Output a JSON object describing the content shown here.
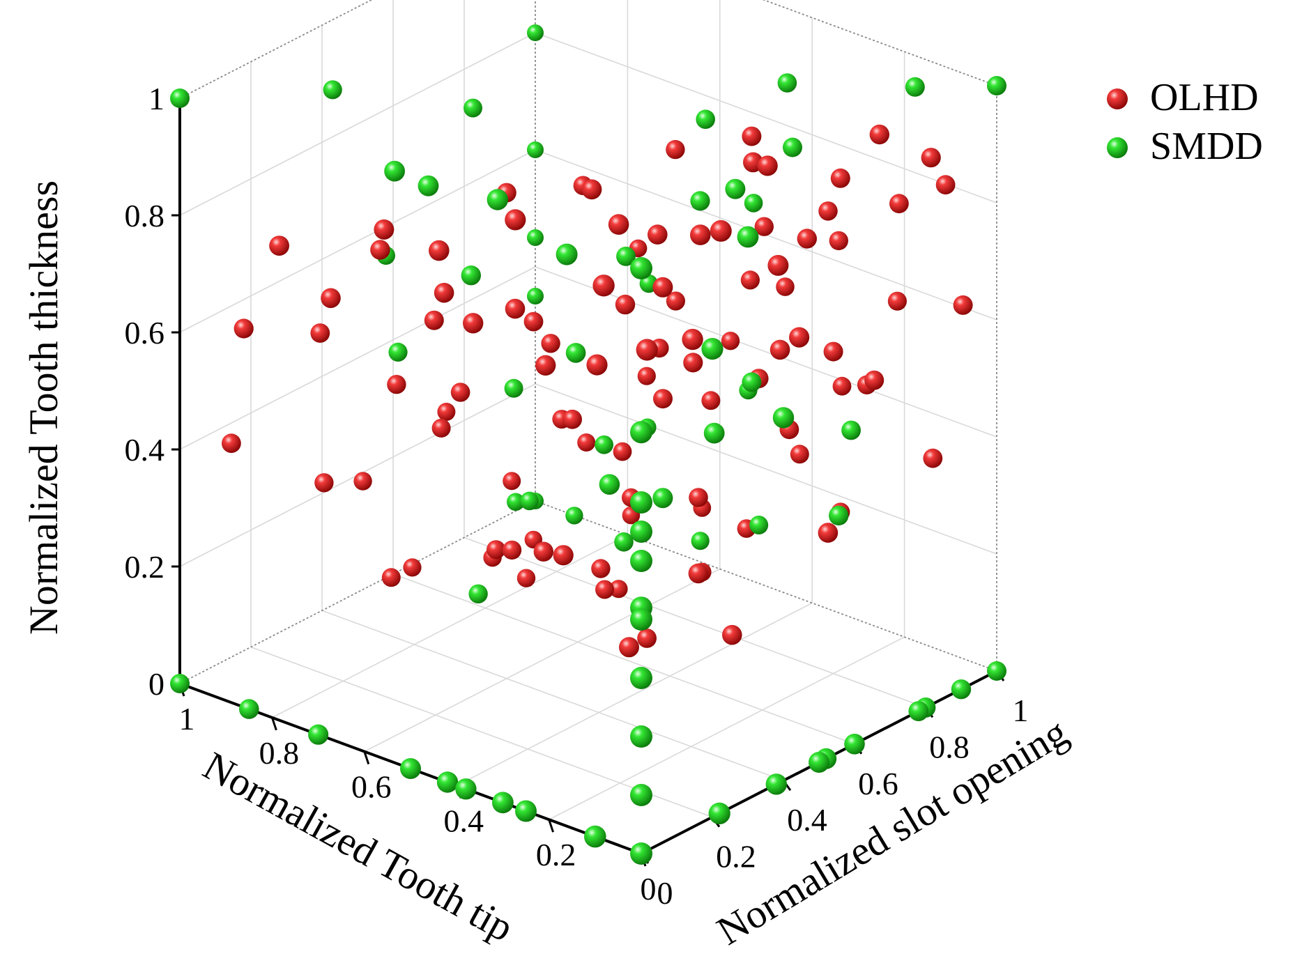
{
  "chart_data": {
    "type": "scatter3d",
    "xlabel": "Normalized Tooth tip",
    "ylabel": "Normalized slot opening",
    "zlabel": "Normalized Tooth thickness",
    "xlim": [
      0,
      1
    ],
    "ylim": [
      0,
      1
    ],
    "zlim": [
      0,
      1
    ],
    "x_ticks": [
      "0",
      "0.2",
      "0.4",
      "0.6",
      "0.8",
      "1"
    ],
    "y_ticks": [
      "0",
      "0.2",
      "0.4",
      "0.6",
      "0.8",
      "1"
    ],
    "z_ticks": [
      "0",
      "0.2",
      "0.4",
      "0.6",
      "0.8",
      "1"
    ],
    "grid": true,
    "legend_position": "top-right",
    "series": [
      {
        "name": "OLHD",
        "color": "#d8141a",
        "points": [
          [
            0.12,
            0.05,
            0.92
          ],
          [
            0.35,
            0.1,
            0.95
          ],
          [
            0.5,
            0.08,
            0.86
          ],
          [
            0.28,
            0.3,
            0.9
          ],
          [
            0.8,
            0.02,
            0.8
          ],
          [
            0.65,
            0.12,
            0.84
          ],
          [
            0.72,
            0.2,
            0.76
          ],
          [
            0.4,
            0.38,
            0.9
          ],
          [
            0.15,
            0.55,
            0.96
          ],
          [
            0.22,
            0.6,
            0.93
          ],
          [
            0.3,
            0.7,
            0.92
          ],
          [
            0.45,
            0.68,
            0.86
          ],
          [
            0.1,
            0.8,
            0.95
          ],
          [
            0.2,
            0.82,
            0.84
          ],
          [
            0.55,
            0.55,
            0.81
          ],
          [
            0.6,
            0.4,
            0.83
          ],
          [
            0.9,
            0.05,
            0.62
          ],
          [
            0.85,
            0.2,
            0.58
          ],
          [
            0.68,
            0.3,
            0.62
          ],
          [
            0.52,
            0.32,
            0.68
          ],
          [
            0.4,
            0.25,
            0.64
          ],
          [
            0.58,
            0.45,
            0.6
          ],
          [
            0.3,
            0.45,
            0.74
          ],
          [
            0.18,
            0.7,
            0.78
          ],
          [
            0.25,
            0.85,
            0.76
          ],
          [
            0.05,
            0.88,
            0.9
          ],
          [
            0.35,
            0.8,
            0.72
          ],
          [
            0.12,
            0.6,
            0.66
          ],
          [
            0.95,
            0.08,
            0.4
          ],
          [
            0.8,
            0.35,
            0.46
          ],
          [
            0.7,
            0.4,
            0.46
          ],
          [
            0.62,
            0.55,
            0.52
          ],
          [
            0.42,
            0.5,
            0.66
          ],
          [
            0.35,
            0.6,
            0.55
          ],
          [
            0.5,
            0.7,
            0.5
          ],
          [
            0.2,
            0.65,
            0.6
          ],
          [
            0.88,
            0.25,
            0.3
          ],
          [
            0.78,
            0.45,
            0.36
          ],
          [
            0.55,
            0.52,
            0.42
          ],
          [
            0.4,
            0.58,
            0.48
          ],
          [
            0.65,
            0.62,
            0.36
          ],
          [
            0.3,
            0.72,
            0.5
          ],
          [
            0.45,
            0.78,
            0.4
          ],
          [
            0.2,
            0.8,
            0.55
          ],
          [
            0.85,
            0.4,
            0.1
          ],
          [
            0.7,
            0.5,
            0.16
          ],
          [
            0.55,
            0.6,
            0.14
          ],
          [
            0.4,
            0.68,
            0.28
          ],
          [
            0.28,
            0.78,
            0.4
          ],
          [
            0.15,
            0.85,
            0.5
          ],
          [
            0.6,
            0.75,
            0.2
          ],
          [
            0.5,
            0.82,
            0.08
          ],
          [
            0.75,
            0.65,
            0.05
          ],
          [
            0.65,
            0.78,
            0.02
          ],
          [
            0.35,
            0.9,
            0.3
          ],
          [
            0.22,
            0.92,
            0.45
          ],
          [
            0.1,
            0.95,
            0.35
          ],
          [
            0.05,
            0.97,
            0.62
          ],
          [
            0.45,
            0.88,
            0.15
          ],
          [
            0.3,
            0.95,
            0.2
          ],
          [
            0.92,
            0.55,
            0.05
          ],
          [
            0.8,
            0.62,
            0.08
          ],
          [
            0.58,
            0.7,
            0.3
          ],
          [
            0.48,
            0.72,
            0.58
          ],
          [
            0.38,
            0.8,
            0.62
          ],
          [
            0.25,
            0.88,
            0.7
          ],
          [
            0.15,
            0.92,
            0.78
          ],
          [
            0.08,
            0.96,
            0.82
          ],
          [
            0.62,
            0.82,
            0.38
          ],
          [
            0.72,
            0.78,
            0.25
          ],
          [
            0.82,
            0.7,
            0.18
          ],
          [
            0.9,
            0.62,
            0.3
          ],
          [
            0.95,
            0.45,
            0.22
          ],
          [
            0.5,
            0.9,
            0.45
          ],
          [
            0.42,
            0.95,
            0.55
          ],
          [
            0.32,
            0.98,
            0.4
          ],
          [
            0.7,
            0.88,
            0.1
          ],
          [
            0.85,
            0.8,
            0.04
          ],
          [
            0.6,
            0.95,
            0.12
          ],
          [
            0.2,
            0.98,
            0.58
          ],
          [
            0.12,
            0.3,
            0.75
          ],
          [
            0.25,
            0.2,
            0.7
          ],
          [
            0.48,
            0.15,
            0.72
          ],
          [
            0.62,
            0.25,
            0.7
          ],
          [
            0.75,
            0.1,
            0.7
          ],
          [
            0.05,
            0.45,
            0.85
          ],
          [
            0.18,
            0.4,
            0.88
          ],
          [
            0.02,
            0.25,
            0.98
          ],
          [
            0.08,
            0.12,
            0.8
          ],
          [
            0.35,
            0.5,
            0.8
          ],
          [
            0.7,
            0.9,
            0.55
          ],
          [
            0.4,
            0.3,
            0.3
          ],
          [
            0.52,
            0.4,
            0.24
          ],
          [
            0.65,
            0.48,
            0.18
          ],
          [
            0.3,
            0.55,
            0.22
          ],
          [
            0.15,
            0.72,
            0.28
          ],
          [
            0.58,
            0.65,
            0.08
          ],
          [
            0.45,
            0.6,
            0.05
          ],
          [
            0.35,
            0.42,
            0.12
          ],
          [
            0.25,
            0.58,
            0.12
          ]
        ]
      },
      {
        "name": "SMDD",
        "color": "#1ec81e",
        "points": [
          [
            0,
            0,
            1
          ],
          [
            1,
            1,
            1
          ],
          [
            0,
            1,
            1
          ],
          [
            1,
            0,
            0
          ],
          [
            0,
            0,
            0
          ],
          [
            1,
            1,
            0
          ],
          [
            0,
            1,
            0
          ],
          [
            1,
            0,
            1
          ],
          [
            0,
            0,
            0.72
          ],
          [
            0,
            0,
            0.55
          ],
          [
            0,
            0,
            0.42
          ],
          [
            0,
            0.2,
            0.8
          ],
          [
            0,
            0.4,
            0.62
          ],
          [
            0,
            0.3,
            0.96
          ],
          [
            0.1,
            0,
            0
          ],
          [
            0.25,
            0,
            0
          ],
          [
            0.3,
            0,
            0
          ],
          [
            0.38,
            0,
            0
          ],
          [
            0.42,
            0,
            0
          ],
          [
            0.5,
            0,
            0
          ],
          [
            0.7,
            0,
            0
          ],
          [
            0.85,
            0,
            0
          ],
          [
            0,
            0.9,
            0
          ],
          [
            0,
            0.8,
            0
          ],
          [
            0,
            0.78,
            0
          ],
          [
            0,
            0.6,
            0
          ],
          [
            0,
            0.52,
            0
          ],
          [
            0,
            0.5,
            0
          ],
          [
            0,
            0.38,
            0
          ],
          [
            0,
            0.22,
            0
          ],
          [
            0,
            0,
            0.1
          ],
          [
            0,
            0,
            0.2
          ],
          [
            0,
            0,
            0.3
          ],
          [
            0,
            0,
            0.4
          ],
          [
            0,
            0,
            0.5
          ],
          [
            0,
            0,
            0.6
          ],
          [
            1,
            1,
            0.8
          ],
          [
            1,
            1,
            0.6
          ],
          [
            1,
            1,
            0.45
          ],
          [
            1,
            1,
            0.35
          ],
          [
            0.2,
            0.05,
            0.95
          ],
          [
            0.35,
            0.05,
            1.0
          ],
          [
            0.5,
            0.05,
            0.98
          ],
          [
            0.55,
            0.02,
            1.0
          ],
          [
            0.9,
            0.3,
            0.95
          ],
          [
            0.75,
            0.5,
            0.9
          ],
          [
            0.3,
            0.8,
            0.98
          ],
          [
            0.1,
            0.9,
            1.0
          ],
          [
            0.6,
            0.3,
            0.72
          ],
          [
            0.45,
            0.4,
            0.6
          ],
          [
            0.7,
            0.55,
            0.42
          ],
          [
            0.62,
            0.7,
            0.3
          ],
          [
            0.5,
            0.6,
            0.2
          ],
          [
            0.3,
            0.7,
            0.5
          ],
          [
            0.2,
            0.85,
            0.4
          ],
          [
            0.15,
            0.75,
            0.3
          ],
          [
            0.82,
            0.38,
            0.5
          ],
          [
            0.9,
            0.45,
            0.62
          ],
          [
            0.4,
            0.85,
            0.18
          ],
          [
            0.55,
            0.88,
            0.1
          ],
          [
            0.72,
            0.62,
            0.2
          ],
          [
            0.35,
            0.62,
            0.82
          ],
          [
            0.25,
            0.75,
            0.9
          ],
          [
            0.45,
            0.9,
            0.7
          ],
          [
            0.6,
            0.8,
            0.55
          ],
          [
            0.5,
            0.95,
            0.35
          ],
          [
            0.68,
            0.9,
            0.25
          ],
          [
            0.8,
            0.85,
            0.08
          ],
          [
            0.85,
            0.75,
            0.12
          ],
          [
            0.7,
            0.45,
            0.1
          ],
          [
            0.3,
            0.45,
            0.38
          ],
          [
            0.48,
            0.58,
            0.7
          ],
          [
            0.22,
            0.55,
            0.9
          ],
          [
            0.4,
            0.7,
            0.92
          ],
          [
            0.15,
            0.4,
            0.55
          ],
          [
            0.3,
            0.3,
            0.45
          ]
        ]
      }
    ]
  }
}
